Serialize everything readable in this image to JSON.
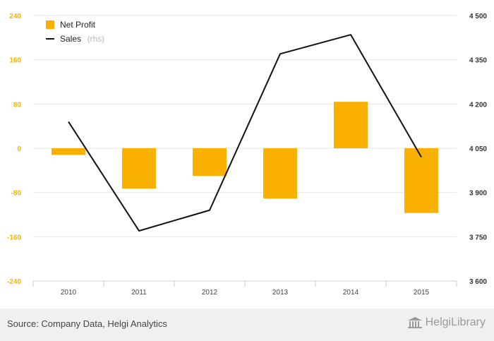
{
  "chart_data": {
    "type": "bar+line",
    "categories": [
      "2010",
      "2011",
      "2012",
      "2013",
      "2014",
      "2015"
    ],
    "series": [
      {
        "name": "Net Profit",
        "type": "bar",
        "axis": "left",
        "color": "#f9b000",
        "values": [
          -12,
          -73,
          -50,
          -91,
          84,
          -117
        ]
      },
      {
        "name": "Sales",
        "name_suffix": "(rhs)",
        "type": "line",
        "axis": "right",
        "color": "#111111",
        "values": [
          4140,
          3770,
          3840,
          4370,
          4435,
          4020
        ]
      }
    ],
    "left_axis": {
      "range": [
        -240,
        240
      ],
      "ticks": [
        240,
        160,
        80,
        0,
        -80,
        -160,
        -240
      ],
      "tick_labels": [
        "240",
        "160",
        "80",
        "0",
        "-80",
        "-160",
        "-240"
      ]
    },
    "right_axis": {
      "range": [
        3600,
        4500
      ],
      "ticks": [
        4500,
        4350,
        4200,
        4050,
        3900,
        3750,
        3600
      ],
      "tick_labels": [
        "4 500",
        "4 350",
        "4 200",
        "4 050",
        "3 900",
        "3 750",
        "3 600"
      ]
    },
    "grid": true,
    "legend_position": "top-left",
    "title": "",
    "xlabel": "",
    "ylabel": ""
  },
  "footer": {
    "source": "Source: Company Data, Helgi Analytics",
    "brand": "HelgiLibrary",
    "brand_icon": "library-building-icon"
  }
}
